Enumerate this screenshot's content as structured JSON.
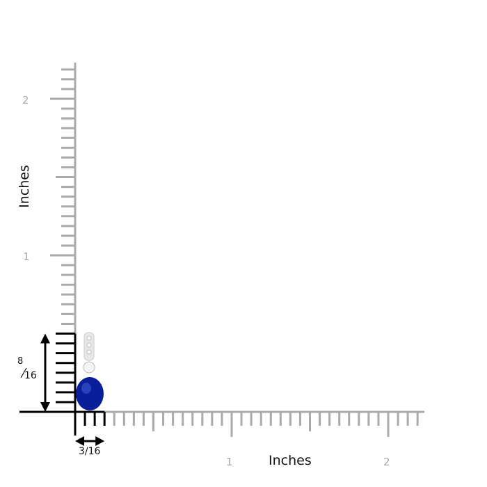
{
  "ruler": {
    "unit_label_x": "Inches",
    "unit_label_y": "Inches",
    "x_ticks": [
      "1",
      "2"
    ],
    "y_ticks": [
      "1",
      "2"
    ],
    "subdivisions_per_inch": 16,
    "ruler_color": "#aaaaaa",
    "highlight_color": "#000000"
  },
  "product": {
    "height_label_num": "8",
    "height_label_den": "16",
    "height_sixteenths": 8,
    "width_label": "3/16",
    "width_sixteenths": 3,
    "gem_color": "#0a1e9a"
  }
}
